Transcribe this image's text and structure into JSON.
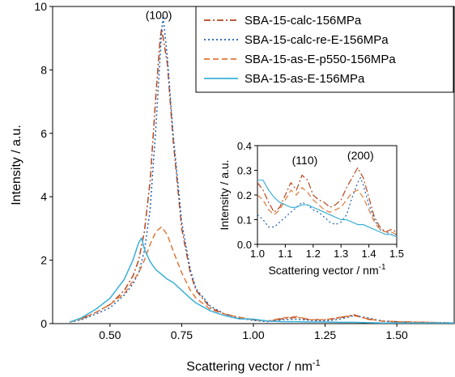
{
  "chart_data": [
    {
      "type": "line",
      "title": "",
      "xlabel": "Scattering vector / nm",
      "xlabel_superscript": "-1",
      "ylabel": "Intensity / a.u.",
      "xlim": [
        0.3,
        1.7
      ],
      "ylim": [
        0,
        10
      ],
      "x_ticks": [
        0.5,
        0.75,
        1.0,
        1.25,
        1.5
      ],
      "x_tick_labels": [
        "0.50",
        "0.75",
        "1.00",
        "1.25",
        "1.50"
      ],
      "y_ticks": [
        0,
        2,
        4,
        6,
        8,
        10
      ],
      "y_tick_labels": [
        "0",
        "2",
        "4",
        "6",
        "8",
        "10"
      ],
      "grid": false,
      "legend_position": "top-right",
      "annotations": [
        {
          "text": "(100)",
          "x": 0.67,
          "y": 9.6
        }
      ],
      "series": [
        {
          "name": "SBA-15-calc-156MPa",
          "color": "#b8461f",
          "style": "dash-dot",
          "x": [
            0.36,
            0.4,
            0.45,
            0.5,
            0.55,
            0.58,
            0.6,
            0.62,
            0.64,
            0.66,
            0.675,
            0.68,
            0.7,
            0.72,
            0.75,
            0.78,
            0.8,
            0.85,
            0.9,
            0.95,
            1.0,
            1.05,
            1.1,
            1.15,
            1.2,
            1.25,
            1.3,
            1.35,
            1.4,
            1.45,
            1.5,
            1.55,
            1.6,
            1.65,
            1.7
          ],
          "y": [
            0.05,
            0.15,
            0.35,
            0.6,
            1.05,
            1.5,
            2.0,
            2.9,
            4.5,
            7.2,
            9.0,
            9.3,
            8.2,
            5.8,
            3.0,
            1.6,
            1.05,
            0.5,
            0.3,
            0.2,
            0.12,
            0.08,
            0.15,
            0.2,
            0.12,
            0.12,
            0.18,
            0.28,
            0.14,
            0.08,
            0.06,
            0.05,
            0.04,
            0.03,
            0.02
          ]
        },
        {
          "name": "SBA-15-calc-re-E-156MPa",
          "color": "#1f5fb0",
          "style": "dotted",
          "x": [
            0.36,
            0.4,
            0.45,
            0.5,
            0.55,
            0.58,
            0.6,
            0.62,
            0.64,
            0.66,
            0.68,
            0.685,
            0.7,
            0.72,
            0.75,
            0.78,
            0.8,
            0.85,
            0.9,
            0.95,
            1.0,
            1.05,
            1.1,
            1.15,
            1.2,
            1.25,
            1.3,
            1.35,
            1.4,
            1.45,
            1.5,
            1.55,
            1.6,
            1.65,
            1.7
          ],
          "y": [
            0.05,
            0.12,
            0.3,
            0.5,
            0.9,
            1.25,
            1.6,
            2.3,
            3.6,
            6.2,
            9.2,
            9.7,
            8.4,
            6.0,
            3.2,
            1.7,
            1.1,
            0.55,
            0.3,
            0.18,
            0.1,
            0.06,
            0.12,
            0.14,
            0.1,
            0.08,
            0.14,
            0.25,
            0.18,
            0.08,
            0.05,
            0.04,
            0.03,
            0.03,
            0.02
          ]
        },
        {
          "name": "SBA-15-as-E-p550-156MPa",
          "color": "#e07838",
          "style": "dashed",
          "x": [
            0.36,
            0.4,
            0.45,
            0.5,
            0.55,
            0.6,
            0.62,
            0.64,
            0.66,
            0.68,
            0.7,
            0.72,
            0.75,
            0.78,
            0.8,
            0.85,
            0.9,
            0.95,
            1.0,
            1.05,
            1.1,
            1.15,
            1.2,
            1.25,
            1.3,
            1.35,
            1.4,
            1.45,
            1.5,
            1.55,
            1.6,
            1.65,
            1.7
          ],
          "y": [
            0.05,
            0.15,
            0.35,
            0.6,
            0.95,
            1.6,
            2.0,
            2.5,
            2.9,
            3.05,
            2.8,
            2.3,
            1.6,
            1.05,
            0.8,
            0.45,
            0.3,
            0.2,
            0.12,
            0.08,
            0.18,
            0.22,
            0.12,
            0.12,
            0.2,
            0.25,
            0.15,
            0.08,
            0.06,
            0.05,
            0.04,
            0.03,
            0.02
          ]
        },
        {
          "name": "SBA-15-as-E-156MPa",
          "color": "#3bb0d8",
          "style": "solid",
          "x": [
            0.36,
            0.4,
            0.45,
            0.5,
            0.55,
            0.58,
            0.6,
            0.61,
            0.62,
            0.64,
            0.66,
            0.68,
            0.7,
            0.72,
            0.75,
            0.78,
            0.8,
            0.85,
            0.9,
            0.95,
            1.0,
            1.05,
            1.1,
            1.15,
            1.2,
            1.25,
            1.3,
            1.35,
            1.4,
            1.45,
            1.5,
            1.55,
            1.6,
            1.65,
            1.7
          ],
          "y": [
            0.05,
            0.18,
            0.45,
            0.8,
            1.4,
            2.0,
            2.55,
            2.7,
            2.35,
            1.95,
            1.7,
            1.55,
            1.4,
            1.3,
            1.05,
            0.8,
            0.65,
            0.4,
            0.25,
            0.15,
            0.14,
            0.08,
            0.06,
            0.06,
            0.05,
            0.05,
            0.04,
            0.04,
            0.03,
            0.02,
            0.02,
            0.02,
            0.02,
            0.02,
            0.02
          ]
        }
      ]
    },
    {
      "type": "line",
      "title": "",
      "xlabel": "Scattering vector / nm",
      "xlabel_superscript": "-1",
      "ylabel": "Intensity / a.u.",
      "xlim": [
        1.0,
        1.5
      ],
      "ylim": [
        0,
        0.4
      ],
      "x_ticks": [
        1.0,
        1.1,
        1.2,
        1.3,
        1.4,
        1.5
      ],
      "x_tick_labels": [
        "1.0",
        "1.1",
        "1.2",
        "1.3",
        "1.4",
        "1.5"
      ],
      "y_ticks": [
        0.0,
        0.1,
        0.2,
        0.3,
        0.4
      ],
      "y_tick_labels": [
        "0.0",
        "0.1",
        "0.2",
        "0.3",
        "0.4"
      ],
      "grid": false,
      "annotations": [
        {
          "text": "(110)",
          "x": 1.17,
          "y": 0.325
        },
        {
          "text": "(200)",
          "x": 1.37,
          "y": 0.345
        }
      ],
      "series": [
        {
          "name": "SBA-15-calc-156MPa",
          "color": "#b8461f",
          "style": "dash-dot",
          "x": [
            1.0,
            1.02,
            1.04,
            1.06,
            1.08,
            1.1,
            1.12,
            1.14,
            1.16,
            1.18,
            1.2,
            1.22,
            1.24,
            1.26,
            1.28,
            1.3,
            1.32,
            1.34,
            1.36,
            1.38,
            1.4,
            1.42,
            1.44,
            1.46,
            1.48,
            1.5
          ],
          "y": [
            0.25,
            0.22,
            0.17,
            0.13,
            0.15,
            0.2,
            0.25,
            0.22,
            0.28,
            0.26,
            0.2,
            0.18,
            0.17,
            0.15,
            0.16,
            0.18,
            0.23,
            0.27,
            0.31,
            0.27,
            0.19,
            0.11,
            0.07,
            0.05,
            0.06,
            0.05
          ]
        },
        {
          "name": "SBA-15-calc-re-E-156MPa",
          "color": "#1f5fb0",
          "style": "dotted",
          "x": [
            1.0,
            1.02,
            1.04,
            1.06,
            1.08,
            1.1,
            1.12,
            1.14,
            1.16,
            1.18,
            1.2,
            1.22,
            1.24,
            1.26,
            1.28,
            1.3,
            1.32,
            1.34,
            1.36,
            1.37,
            1.38,
            1.4,
            1.42,
            1.44,
            1.46,
            1.48,
            1.5
          ],
          "y": [
            0.12,
            0.1,
            0.07,
            0.07,
            0.09,
            0.11,
            0.13,
            0.15,
            0.17,
            0.16,
            0.14,
            0.13,
            0.11,
            0.09,
            0.08,
            0.09,
            0.12,
            0.19,
            0.25,
            0.27,
            0.24,
            0.16,
            0.1,
            0.06,
            0.05,
            0.04,
            0.04
          ]
        },
        {
          "name": "SBA-15-as-E-p550-156MPa",
          "color": "#e07838",
          "style": "dashed",
          "x": [
            1.0,
            1.02,
            1.04,
            1.06,
            1.08,
            1.1,
            1.12,
            1.14,
            1.16,
            1.18,
            1.2,
            1.22,
            1.24,
            1.26,
            1.28,
            1.3,
            1.32,
            1.34,
            1.36,
            1.38,
            1.4,
            1.42,
            1.44,
            1.46,
            1.48,
            1.5
          ],
          "y": [
            0.2,
            0.18,
            0.14,
            0.12,
            0.14,
            0.18,
            0.22,
            0.2,
            0.23,
            0.21,
            0.18,
            0.16,
            0.14,
            0.13,
            0.14,
            0.15,
            0.18,
            0.21,
            0.22,
            0.19,
            0.14,
            0.09,
            0.06,
            0.05,
            0.05,
            0.04
          ]
        },
        {
          "name": "SBA-15-as-E-156MPa",
          "color": "#3bb0d8",
          "style": "solid",
          "x": [
            1.0,
            1.02,
            1.04,
            1.06,
            1.08,
            1.1,
            1.12,
            1.14,
            1.16,
            1.18,
            1.2,
            1.22,
            1.24,
            1.26,
            1.28,
            1.3,
            1.32,
            1.34,
            1.36,
            1.38,
            1.4,
            1.42,
            1.44,
            1.46,
            1.48,
            1.5
          ],
          "y": [
            0.26,
            0.26,
            0.22,
            0.19,
            0.17,
            0.16,
            0.15,
            0.15,
            0.16,
            0.16,
            0.15,
            0.14,
            0.13,
            0.12,
            0.11,
            0.1,
            0.1,
            0.09,
            0.08,
            0.08,
            0.07,
            0.06,
            0.05,
            0.04,
            0.04,
            0.03
          ]
        }
      ]
    }
  ]
}
